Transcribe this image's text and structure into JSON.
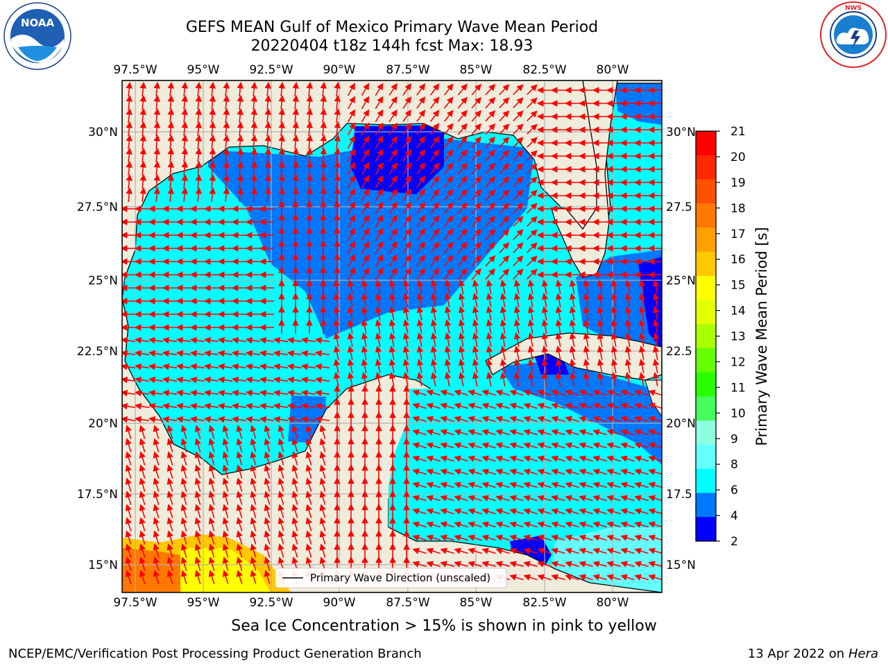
{
  "header": {
    "title_line1": "GEFS MEAN Gulf of Mexico Primary Wave Mean Period",
    "title_line2": "20220404 t18z 144h fcst   Max: 18.93"
  },
  "logos": {
    "left": {
      "text": "NOAA",
      "ring_text": "NATIONAL OCEANIC AND ATMOSPHERIC ADMINISTRATION · U.S. DEPARTMENT OF COMMERCE"
    },
    "right": {
      "ring_text": "NATIONAL WEATHER SERVICE"
    }
  },
  "map": {
    "lon_labels": [
      "97.5°W",
      "95°W",
      "92.5°W",
      "90°W",
      "87.5°W",
      "85°W",
      "82.5°W",
      "80°W"
    ],
    "lat_labels_left": [
      "30°N",
      "27.5°N",
      "25°N",
      "22.5°N",
      "20°N",
      "17.5°N",
      "15°N"
    ],
    "lat_labels_right": [
      "30°N",
      "27.5",
      "25°N",
      "22.5",
      "20°N",
      "17.5",
      "15°N"
    ],
    "land_color": "#efecdc",
    "legend_label": "Primary Wave Direction (unscaled)",
    "arrow_color": "#ff0000"
  },
  "colorbar": {
    "label": "Primary Wave Mean Period [s]",
    "ticks": [
      "21",
      "20",
      "19",
      "18",
      "17",
      "16",
      "15",
      "14",
      "13",
      "12",
      "11",
      "10",
      "9",
      "8",
      "6",
      "4",
      "2"
    ],
    "colors_top_to_bottom": [
      "#ff0000",
      "#ff2800",
      "#ff5000",
      "#ff7800",
      "#ffa000",
      "#ffc800",
      "#ffff00",
      "#e6ff00",
      "#aaff00",
      "#64ff00",
      "#28ff00",
      "#46ff5a",
      "#8cffe1",
      "#64ffff",
      "#00ffff",
      "#0078ff",
      "#0000ff"
    ]
  },
  "caption": "Sea Ice Concentration > 15% is shown in pink to yellow",
  "footer": {
    "left": "NCEP/EMC/Verification Post Processing Product Generation Branch",
    "right_date": "13 Apr 2022 on",
    "right_machine": "Hera"
  }
}
